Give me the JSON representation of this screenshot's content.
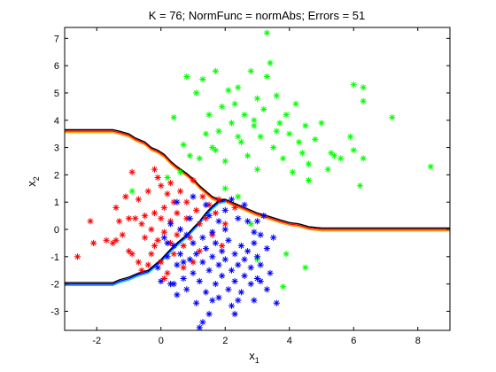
{
  "chart_data": {
    "type": "scatter",
    "title": "K = 76; NormFunc = normAbs; Errors = 51",
    "xlabel": "x",
    "xlabel_sub": "1",
    "ylabel": "x",
    "ylabel_sub": "2",
    "xlim": [
      -3,
      9
    ],
    "ylim": [
      -3.7,
      7.4
    ],
    "xticks": [
      -2,
      0,
      2,
      4,
      6,
      8
    ],
    "yticks": [
      -3,
      -2,
      -1,
      0,
      1,
      2,
      3,
      4,
      5,
      6,
      7
    ],
    "grid": false,
    "legend": "none",
    "marker": "*",
    "series": [
      {
        "class": "red",
        "color": "#ff0000",
        "points": [
          [
            -2.6,
            -1.0
          ],
          [
            -2.2,
            0.3
          ],
          [
            -2.1,
            -0.5
          ],
          [
            -1.7,
            -0.4
          ],
          [
            -1.5,
            -0.5
          ],
          [
            -1.4,
            -0.4
          ],
          [
            -1.3,
            0.3
          ],
          [
            -1.2,
            -0.2
          ],
          [
            -1.1,
            1.2
          ],
          [
            -1.0,
            0.4
          ],
          [
            -1.0,
            -0.8
          ],
          [
            -0.9,
            -0.9
          ],
          [
            -0.8,
            0.4
          ],
          [
            -0.7,
            -1.2
          ],
          [
            -0.6,
            0.2
          ],
          [
            -0.6,
            -1.5
          ],
          [
            -0.5,
            0.5
          ],
          [
            -0.5,
            -0.3
          ],
          [
            -0.4,
            1.4
          ],
          [
            -0.3,
            -0.9
          ],
          [
            -0.3,
            0.0
          ],
          [
            -0.2,
            0.6
          ],
          [
            -0.2,
            -0.6
          ],
          [
            -0.1,
            1.9
          ],
          [
            -0.1,
            -0.4
          ],
          [
            0.0,
            1.6
          ],
          [
            0.0,
            0.4
          ],
          [
            0.0,
            -1.2
          ],
          [
            0.1,
            -0.1
          ],
          [
            0.1,
            0.8
          ],
          [
            0.2,
            1.3
          ],
          [
            0.2,
            -1.6
          ],
          [
            0.3,
            0.3
          ],
          [
            0.3,
            -0.5
          ],
          [
            0.4,
            1.0
          ],
          [
            0.4,
            -0.9
          ],
          [
            0.5,
            0.6
          ],
          [
            0.5,
            -0.2
          ],
          [
            0.6,
            1.4
          ],
          [
            0.6,
            0.0
          ],
          [
            0.7,
            -0.6
          ],
          [
            0.8,
            0.4
          ],
          [
            0.8,
            1.0
          ],
          [
            0.9,
            -0.3
          ],
          [
            1.0,
            1.8
          ],
          [
            1.1,
            0.7
          ],
          [
            1.2,
            0.2
          ],
          [
            1.2,
            -0.8
          ],
          [
            1.3,
            1.2
          ],
          [
            1.4,
            0.4
          ],
          [
            1.5,
            0.9
          ],
          [
            1.6,
            -0.2
          ],
          [
            1.7,
            0.6
          ],
          [
            1.8,
            1.1
          ],
          [
            1.9,
            -0.6
          ],
          [
            2.0,
            0.2
          ],
          [
            -0.9,
            2.1
          ],
          [
            -0.7,
            1.1
          ],
          [
            -1.4,
            0.8
          ],
          [
            -0.4,
            -1.3
          ],
          [
            0.1,
            -1.8
          ],
          [
            0.7,
            -1.4
          ],
          [
            2.3,
            0.8
          ],
          [
            -0.2,
            2.2
          ],
          [
            0.3,
            1.7
          ],
          [
            1.0,
            -1.2
          ]
        ]
      },
      {
        "class": "green",
        "color": "#00ff00",
        "points": [
          [
            3.3,
            7.2
          ],
          [
            0.4,
            4.1
          ],
          [
            0.8,
            5.6
          ],
          [
            1.1,
            5.0
          ],
          [
            1.3,
            5.5
          ],
          [
            1.5,
            4.2
          ],
          [
            1.7,
            5.8
          ],
          [
            1.8,
            3.6
          ],
          [
            1.9,
            4.5
          ],
          [
            2.0,
            2.5
          ],
          [
            2.1,
            5.1
          ],
          [
            2.2,
            3.9
          ],
          [
            2.3,
            4.6
          ],
          [
            2.4,
            5.2
          ],
          [
            2.5,
            3.2
          ],
          [
            2.6,
            4.2
          ],
          [
            2.7,
            2.7
          ],
          [
            2.8,
            5.8
          ],
          [
            2.9,
            3.8
          ],
          [
            3.0,
            4.8
          ],
          [
            3.0,
            2.2
          ],
          [
            3.1,
            3.4
          ],
          [
            3.2,
            4.4
          ],
          [
            3.3,
            5.6
          ],
          [
            3.4,
            6.1
          ],
          [
            3.5,
            3.0
          ],
          [
            3.6,
            4.9
          ],
          [
            3.7,
            3.9
          ],
          [
            3.8,
            2.6
          ],
          [
            3.9,
            4.2
          ],
          [
            4.0,
            3.5
          ],
          [
            4.1,
            2.1
          ],
          [
            4.2,
            4.6
          ],
          [
            4.3,
            3.2
          ],
          [
            4.4,
            2.8
          ],
          [
            4.5,
            3.8
          ],
          [
            4.6,
            2.4
          ],
          [
            4.8,
            3.3
          ],
          [
            5.0,
            3.9
          ],
          [
            5.2,
            2.2
          ],
          [
            5.4,
            2.7
          ],
          [
            5.6,
            2.6
          ],
          [
            5.9,
            3.4
          ],
          [
            6.0,
            2.9
          ],
          [
            6.3,
            2.6
          ],
          [
            6.0,
            5.3
          ],
          [
            6.3,
            5.2
          ],
          [
            6.3,
            4.7
          ],
          [
            7.2,
            4.1
          ],
          [
            8.4,
            2.3
          ],
          [
            6.2,
            1.6
          ],
          [
            5.3,
            2.8
          ],
          [
            4.6,
            1.8
          ],
          [
            4.5,
            -1.4
          ],
          [
            3.9,
            -0.9
          ],
          [
            3.8,
            -2.1
          ],
          [
            3.0,
            -1.1
          ],
          [
            2.8,
            0.2
          ],
          [
            2.4,
            1.2
          ],
          [
            2.0,
            1.5
          ],
          [
            1.7,
            2.9
          ],
          [
            1.4,
            3.5
          ],
          [
            1.2,
            2.6
          ],
          [
            0.9,
            2.7
          ],
          [
            0.7,
            3.1
          ],
          [
            0.2,
            1.9
          ],
          [
            -0.9,
            1.4
          ],
          [
            0.6,
            2.1
          ],
          [
            2.4,
            3.4
          ],
          [
            2.9,
            4.0
          ],
          [
            3.6,
            3.6
          ],
          [
            1.6,
            3.0
          ]
        ]
      },
      {
        "class": "blue",
        "color": "#0000ff",
        "points": [
          [
            0.1,
            -0.3
          ],
          [
            0.2,
            -1.0
          ],
          [
            0.3,
            -2.0
          ],
          [
            0.4,
            -0.6
          ],
          [
            0.5,
            -1.3
          ],
          [
            0.5,
            -2.4
          ],
          [
            0.6,
            -0.9
          ],
          [
            0.7,
            -1.8
          ],
          [
            0.8,
            -0.2
          ],
          [
            0.8,
            -2.2
          ],
          [
            0.9,
            -1.1
          ],
          [
            1.0,
            -0.5
          ],
          [
            1.0,
            -1.6
          ],
          [
            1.1,
            -2.7
          ],
          [
            1.1,
            -0.9
          ],
          [
            1.2,
            -1.9
          ],
          [
            1.3,
            -0.3
          ],
          [
            1.3,
            -1.2
          ],
          [
            1.4,
            -2.3
          ],
          [
            1.4,
            -0.7
          ],
          [
            1.5,
            -1.5
          ],
          [
            1.5,
            -3.1
          ],
          [
            1.6,
            -0.1
          ],
          [
            1.6,
            -1.0
          ],
          [
            1.7,
            -2.0
          ],
          [
            1.7,
            -0.5
          ],
          [
            1.8,
            -1.3
          ],
          [
            1.8,
            -2.5
          ],
          [
            1.9,
            -0.8
          ],
          [
            1.9,
            -1.7
          ],
          [
            2.0,
            0.0
          ],
          [
            2.0,
            -1.1
          ],
          [
            2.1,
            -2.2
          ],
          [
            2.1,
            -0.4
          ],
          [
            2.2,
            -1.5
          ],
          [
            2.2,
            -2.8
          ],
          [
            2.3,
            -0.9
          ],
          [
            2.3,
            -1.9
          ],
          [
            2.4,
            0.4
          ],
          [
            2.4,
            -1.3
          ],
          [
            2.5,
            -0.6
          ],
          [
            2.5,
            -2.3
          ],
          [
            2.6,
            -1.1
          ],
          [
            2.6,
            -1.7
          ],
          [
            2.7,
            0.3
          ],
          [
            2.7,
            -0.8
          ],
          [
            2.8,
            -2.0
          ],
          [
            2.8,
            -1.4
          ],
          [
            2.9,
            -0.5
          ],
          [
            2.9,
            -2.6
          ],
          [
            3.0,
            -1.0
          ],
          [
            3.0,
            -1.8
          ],
          [
            3.1,
            -0.2
          ],
          [
            3.1,
            -1.3
          ],
          [
            3.2,
            0.5
          ],
          [
            3.3,
            -2.2
          ],
          [
            3.3,
            -0.7
          ],
          [
            3.4,
            -1.6
          ],
          [
            3.5,
            -0.3
          ],
          [
            3.6,
            -2.7
          ],
          [
            3.0,
            0.3
          ],
          [
            2.0,
            0.7
          ],
          [
            1.5,
            0.5
          ],
          [
            1.3,
            -3.4
          ],
          [
            1.2,
            -3.6
          ],
          [
            2.3,
            -3.1
          ],
          [
            0.3,
            0.2
          ],
          [
            0.6,
            0.0
          ],
          [
            0.9,
            0.4
          ],
          [
            -0.1,
            -1.4
          ],
          [
            0.0,
            -1.9
          ],
          [
            0.2,
            -0.5
          ],
          [
            1.0,
            1.2
          ],
          [
            1.4,
            0.9
          ],
          [
            2.2,
            1.1
          ],
          [
            2.6,
            0.9
          ],
          [
            0.5,
            1.0
          ],
          [
            1.8,
            0.3
          ],
          [
            2.4,
            -2.6
          ],
          [
            1.6,
            -2.6
          ],
          [
            0.4,
            -2.0
          ],
          [
            0.7,
            -1.2
          ],
          [
            2.9,
            -0.1
          ],
          [
            3.1,
            -1.9
          ]
        ]
      }
    ],
    "boundaries": [
      {
        "name": "",
        "colors": [
          "#000000",
          "#ff0000",
          "#ffa000"
        ],
        "points": [
          [
            -3.0,
            3.65
          ],
          [
            -1.5,
            3.65
          ],
          [
            -1.3,
            3.6
          ],
          [
            -1.0,
            3.5
          ],
          [
            -0.8,
            3.35
          ],
          [
            -0.5,
            3.2
          ],
          [
            -0.3,
            3.0
          ],
          [
            -0.1,
            2.9
          ],
          [
            0.1,
            2.75
          ],
          [
            0.3,
            2.5
          ],
          [
            0.5,
            2.3
          ],
          [
            0.8,
            2.05
          ],
          [
            1.0,
            1.85
          ],
          [
            1.2,
            1.6
          ],
          [
            1.4,
            1.4
          ],
          [
            1.6,
            1.2
          ],
          [
            1.8,
            1.1
          ],
          [
            2.0,
            1.1
          ],
          [
            2.2,
            1.0
          ],
          [
            2.4,
            0.9
          ],
          [
            2.7,
            0.75
          ],
          [
            3.0,
            0.6
          ],
          [
            3.3,
            0.5
          ],
          [
            3.7,
            0.35
          ],
          [
            4.0,
            0.25
          ],
          [
            4.3,
            0.2
          ],
          [
            4.6,
            0.1
          ],
          [
            5.0,
            0.05
          ],
          [
            9.0,
            0.05
          ]
        ]
      },
      {
        "name": "",
        "colors": [
          "#000000",
          "#0000ff",
          "#00c0ff"
        ],
        "points": [
          [
            -3.0,
            -1.95
          ],
          [
            -1.5,
            -1.95
          ],
          [
            -1.3,
            -1.85
          ],
          [
            -1.0,
            -1.75
          ],
          [
            -0.7,
            -1.6
          ],
          [
            -0.4,
            -1.5
          ],
          [
            -0.2,
            -1.3
          ],
          [
            0.0,
            -1.1
          ],
          [
            0.2,
            -0.85
          ],
          [
            0.4,
            -0.6
          ],
          [
            0.6,
            -0.4
          ],
          [
            0.8,
            -0.2
          ],
          [
            1.0,
            0.05
          ],
          [
            1.2,
            0.3
          ],
          [
            1.4,
            0.6
          ],
          [
            1.6,
            0.85
          ],
          [
            1.8,
            1.05
          ],
          [
            2.0,
            1.1
          ]
        ]
      }
    ]
  }
}
